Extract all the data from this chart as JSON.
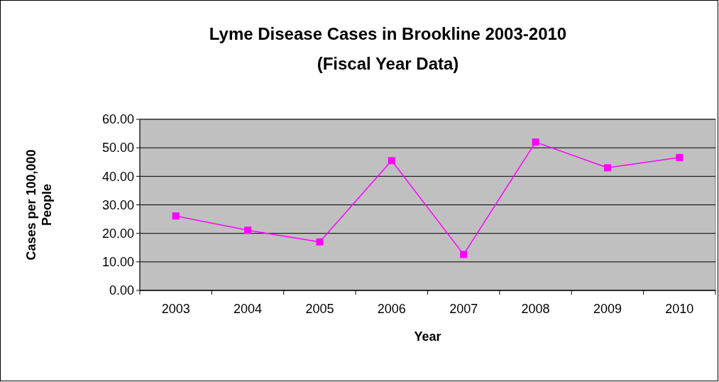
{
  "chart_data": {
    "type": "line",
    "title": "Lyme Disease Cases in Brookline 2003-2010",
    "subtitle": "(Fiscal Year Data)",
    "xlabel": "Year",
    "ylabel": "Cases per 100,000 People",
    "categories": [
      "2003",
      "2004",
      "2005",
      "2006",
      "2007",
      "2008",
      "2009",
      "2010"
    ],
    "series": [
      {
        "color": "#ff00ff",
        "values": [
          26.1,
          21.1,
          17.0,
          45.5,
          12.6,
          52.0,
          43.0,
          46.6
        ]
      }
    ],
    "ylim": [
      0,
      60
    ],
    "yticks": [
      {
        "value": 0,
        "label": "0.00"
      },
      {
        "value": 10,
        "label": "10.00"
      },
      {
        "value": 20,
        "label": "20.00"
      },
      {
        "value": 30,
        "label": "30.00"
      },
      {
        "value": 40,
        "label": "40.00"
      },
      {
        "value": 50,
        "label": "50.00"
      },
      {
        "value": 60,
        "label": "60.00"
      }
    ],
    "grid": "y",
    "marker": "square",
    "line_style": "solid"
  }
}
